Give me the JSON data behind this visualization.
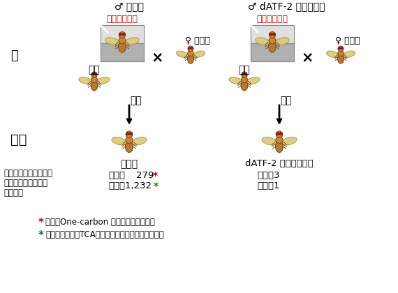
{
  "bg_color": "#ffffff",
  "title_left": "♂ 野生型",
  "title_right": "♂ dATF-2 ホモ変异体",
  "stress_label": "拘束ストレス",
  "female_label": "♀ 野生型",
  "parent_label": "親",
  "mata_label": "又は",
  "cross_label": "×",
  "mating_label": "交配",
  "child_label": "子供",
  "child_left_label": "野生型",
  "child_right_label": "dATF-2 ヘテロ変异体",
  "gene_desc_line1": "父親への拘束ストレス",
  "gene_desc_line2": "により発現変化した",
  "gene_desc_line3": "遣伝子数",
  "up_left_label": "上昇：",
  "up_left_val": "279",
  "down_left_label": "低下：1,232",
  "up_right_label": "上昇：3",
  "down_right_label": "低下：1",
  "footnote1_text": "多くのOne-carbon 代賭系遣伝子を含む",
  "footnote2_text": "多くの解糖系、TCA回路、電子伝達系遣伝子を含む",
  "stress_color": "#cc0000",
  "green_color": "#007700",
  "black": "#000000"
}
